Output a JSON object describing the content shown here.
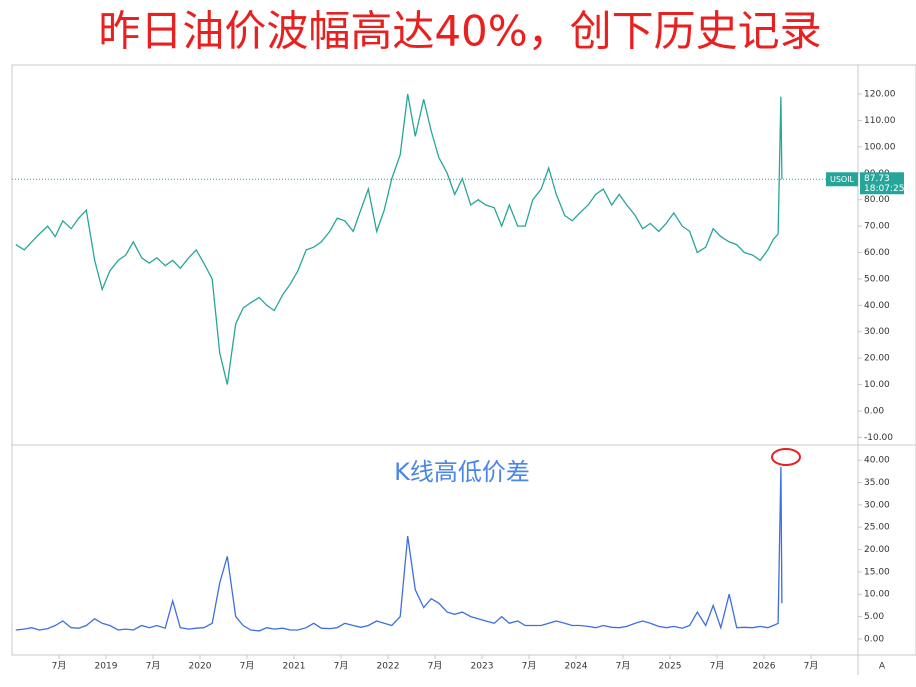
{
  "chart_data": [
    {
      "type": "line",
      "title": "昨日油价波幅高达40%，创下历史记录",
      "x": [
        2018.04,
        2018.13,
        2018.21,
        2018.29,
        2018.38,
        2018.46,
        2018.54,
        2018.63,
        2018.71,
        2018.79,
        2018.88,
        2018.96,
        2019.04,
        2019.13,
        2019.21,
        2019.29,
        2019.38,
        2019.46,
        2019.54,
        2019.63,
        2019.71,
        2019.79,
        2019.88,
        2019.96,
        2020.04,
        2020.13,
        2020.21,
        2020.29,
        2020.38,
        2020.46,
        2020.54,
        2020.63,
        2020.71,
        2020.79,
        2020.88,
        2020.96,
        2021.04,
        2021.13,
        2021.21,
        2021.29,
        2021.38,
        2021.46,
        2021.54,
        2021.63,
        2021.71,
        2021.79,
        2021.88,
        2021.96,
        2022.04,
        2022.13,
        2022.21,
        2022.29,
        2022.38,
        2022.46,
        2022.54,
        2022.63,
        2022.71,
        2022.79,
        2022.88,
        2022.96,
        2023.04,
        2023.13,
        2023.21,
        2023.29,
        2023.38,
        2023.46,
        2023.54,
        2023.63,
        2023.71,
        2023.79,
        2023.88,
        2023.96,
        2024.04,
        2024.13,
        2024.21,
        2024.29,
        2024.38,
        2024.46,
        2024.54,
        2024.63,
        2024.71,
        2024.79,
        2024.88,
        2024.96,
        2025.04,
        2025.13,
        2025.21,
        2025.29,
        2025.38,
        2025.46,
        2025.54,
        2025.63,
        2025.71,
        2025.79,
        2025.88,
        2025.96,
        2026.04,
        2026.1,
        2026.15,
        2026.18,
        2026.19
      ],
      "series": [
        {
          "color": "#26a69a",
          "values": [
            63,
            61,
            64,
            67,
            70,
            66,
            72,
            69,
            73,
            76,
            57,
            46,
            53,
            57,
            59,
            64,
            58,
            56,
            58,
            55,
            57,
            54,
            58,
            61,
            56,
            50,
            22,
            10,
            33,
            39,
            41,
            43,
            40,
            38,
            44,
            48,
            53,
            61,
            62,
            64,
            68,
            73,
            72,
            68,
            76,
            84,
            68,
            76,
            88,
            97,
            120,
            104,
            118,
            106,
            96,
            90,
            82,
            88,
            78,
            80,
            78,
            77,
            70,
            78,
            70,
            70,
            80,
            84,
            92,
            82,
            74,
            72,
            75,
            78,
            82,
            84,
            78,
            82,
            78,
            74,
            69,
            71,
            68,
            71,
            75,
            70,
            68,
            60,
            62,
            69,
            66,
            64,
            63,
            60,
            59,
            57,
            61,
            65,
            67,
            119,
            87.73
          ]
        }
      ],
      "ylim": [
        -12.9,
        131
      ],
      "yticks": [
        {
          "value": -10,
          "label": "-10.00"
        },
        {
          "value": 0,
          "label": "0.00"
        },
        {
          "value": 10,
          "label": "10.00"
        },
        {
          "value": 20,
          "label": "20.00"
        },
        {
          "value": 30,
          "label": "30.00"
        },
        {
          "value": 40,
          "label": "40.00"
        },
        {
          "value": 50,
          "label": "50.00"
        },
        {
          "value": 60,
          "label": "60.00"
        },
        {
          "value": 70,
          "label": "70.00"
        },
        {
          "value": 80,
          "label": "80.00"
        },
        {
          "value": 90,
          "label": "90.00"
        },
        {
          "value": 100,
          "label": "100.00"
        },
        {
          "value": 110,
          "label": "110.00"
        },
        {
          "value": 120,
          "label": "120.00"
        }
      ],
      "last_price": {
        "symbol": "USOIL",
        "value": 87.73,
        "time": "18:07:25"
      }
    },
    {
      "type": "line",
      "annotation": "K线高低价差",
      "x": [
        2018.04,
        2018.13,
        2018.21,
        2018.29,
        2018.38,
        2018.46,
        2018.54,
        2018.63,
        2018.71,
        2018.79,
        2018.88,
        2018.96,
        2019.04,
        2019.13,
        2019.21,
        2019.29,
        2019.38,
        2019.46,
        2019.54,
        2019.63,
        2019.71,
        2019.79,
        2019.88,
        2019.96,
        2020.04,
        2020.13,
        2020.21,
        2020.29,
        2020.38,
        2020.46,
        2020.54,
        2020.63,
        2020.71,
        2020.79,
        2020.88,
        2020.96,
        2021.04,
        2021.13,
        2021.21,
        2021.29,
        2021.38,
        2021.46,
        2021.54,
        2021.63,
        2021.71,
        2021.79,
        2021.88,
        2021.96,
        2022.04,
        2022.13,
        2022.21,
        2022.29,
        2022.38,
        2022.46,
        2022.54,
        2022.63,
        2022.71,
        2022.79,
        2022.88,
        2022.96,
        2023.04,
        2023.13,
        2023.21,
        2023.29,
        2023.38,
        2023.46,
        2023.54,
        2023.63,
        2023.71,
        2023.79,
        2023.88,
        2023.96,
        2024.04,
        2024.13,
        2024.21,
        2024.29,
        2024.38,
        2024.46,
        2024.54,
        2024.63,
        2024.71,
        2024.79,
        2024.88,
        2024.96,
        2025.04,
        2025.13,
        2025.21,
        2025.29,
        2025.38,
        2025.46,
        2025.54,
        2025.63,
        2025.71,
        2025.79,
        2025.88,
        2025.96,
        2026.04,
        2026.1,
        2026.15,
        2026.18,
        2026.19
      ],
      "series": [
        {
          "color": "#3d6fe0",
          "values": [
            2,
            2.2,
            2.5,
            2,
            2.3,
            3,
            4,
            2.5,
            2.4,
            3,
            4.5,
            3.5,
            3,
            2,
            2.2,
            2,
            3,
            2.5,
            3,
            2.4,
            8.5,
            2.5,
            2.2,
            2.4,
            2.5,
            3.5,
            12.5,
            18.5,
            5,
            3,
            2,
            1.8,
            2.5,
            2.2,
            2.4,
            2,
            2,
            2.5,
            3.5,
            2.4,
            2.3,
            2.5,
            3.5,
            3,
            2.6,
            3,
            4,
            3.5,
            3,
            5,
            23,
            11,
            7,
            9,
            8,
            6,
            5.5,
            6,
            5,
            4.5,
            4,
            3.5,
            5,
            3.5,
            4,
            3,
            3,
            3,
            3.5,
            4,
            3.5,
            3,
            3,
            2.8,
            2.5,
            3,
            2.6,
            2.5,
            2.8,
            3.5,
            4,
            3.5,
            2.8,
            2.5,
            2.8,
            2.4,
            3,
            6,
            3,
            7.5,
            2.5,
            10,
            2.5,
            2.6,
            2.5,
            2.8,
            2.5,
            3,
            3.5,
            38.5,
            8
          ]
        }
      ],
      "ylim": [
        -3.6,
        43.4
      ],
      "yticks": [
        {
          "value": 0,
          "label": "0.00"
        },
        {
          "value": 5,
          "label": "5.00"
        },
        {
          "value": 10,
          "label": "10.00"
        },
        {
          "value": 15,
          "label": "15.00"
        },
        {
          "value": 20,
          "label": "20.00"
        },
        {
          "value": 25,
          "label": "25.00"
        },
        {
          "value": 30,
          "label": "30.00"
        },
        {
          "value": 35,
          "label": "35.00"
        },
        {
          "value": 40,
          "label": "40.00"
        }
      ],
      "xlim": [
        2018.0,
        2027.0
      ],
      "xticks": [
        {
          "value": 2018.5,
          "label": "7月"
        },
        2019,
        {
          "value": 2019.5,
          "label": "7月"
        },
        2020,
        {
          "value": 2020.5,
          "label": "7月"
        },
        2021,
        {
          "value": 2021.5,
          "label": "7月"
        },
        2022,
        {
          "value": 2022.5,
          "label": "7月"
        },
        2023,
        {
          "value": 2023.5,
          "label": "7月"
        },
        2024,
        {
          "value": 2024.5,
          "label": "7月"
        },
        2025,
        {
          "value": 2025.5,
          "label": "7月"
        },
        2026,
        {
          "value": 2026.5,
          "label": "7月"
        }
      ],
      "axis_button": "A"
    }
  ]
}
